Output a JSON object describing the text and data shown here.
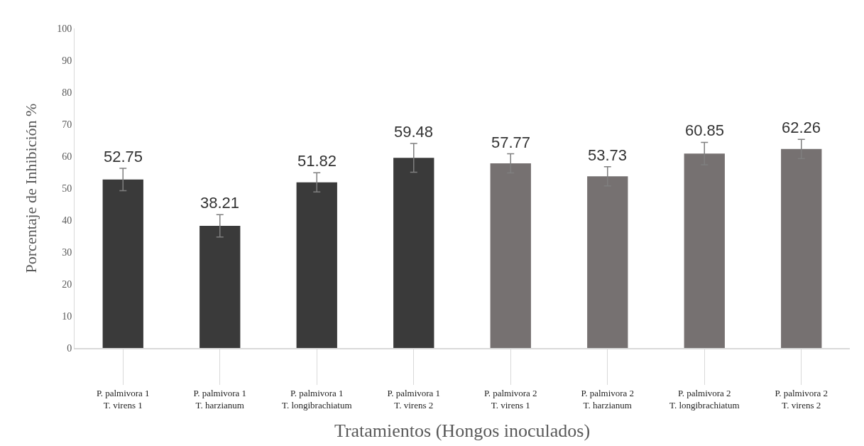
{
  "chart_data": {
    "type": "bar",
    "xlabel": "Tratamientos (Hongos inoculados)",
    "ylabel": "Porcentaje de Inhibición %",
    "categories": [
      "P. palmivora 1 T. virens 1",
      "P. palmivora 1 T. harzianum",
      "P. palmivora 1 T. longibrachiatum",
      "P. palmivora 1 T. virens 2",
      "P. palmivora 2 T. virens 1",
      "P. palmivora 2 T. harzianum",
      "P. palmivora 2 T. longibrachiatum",
      "P. palmivora 2 T. virens 2"
    ],
    "values": [
      52.75,
      38.21,
      51.82,
      59.48,
      57.77,
      53.73,
      60.85,
      62.26
    ],
    "errors": [
      3.5,
      3.5,
      3,
      4.5,
      3,
      3,
      3.5,
      3
    ],
    "colors": [
      "#3a3a3a",
      "#3a3a3a",
      "#3a3a3a",
      "#3a3a3a",
      "#767171",
      "#767171",
      "#767171",
      "#767171"
    ],
    "ylim": [
      0,
      100
    ],
    "yticks": [
      0,
      10,
      20,
      30,
      40,
      50,
      60,
      70,
      80,
      90,
      100
    ],
    "grid": false,
    "data_labels": true
  }
}
